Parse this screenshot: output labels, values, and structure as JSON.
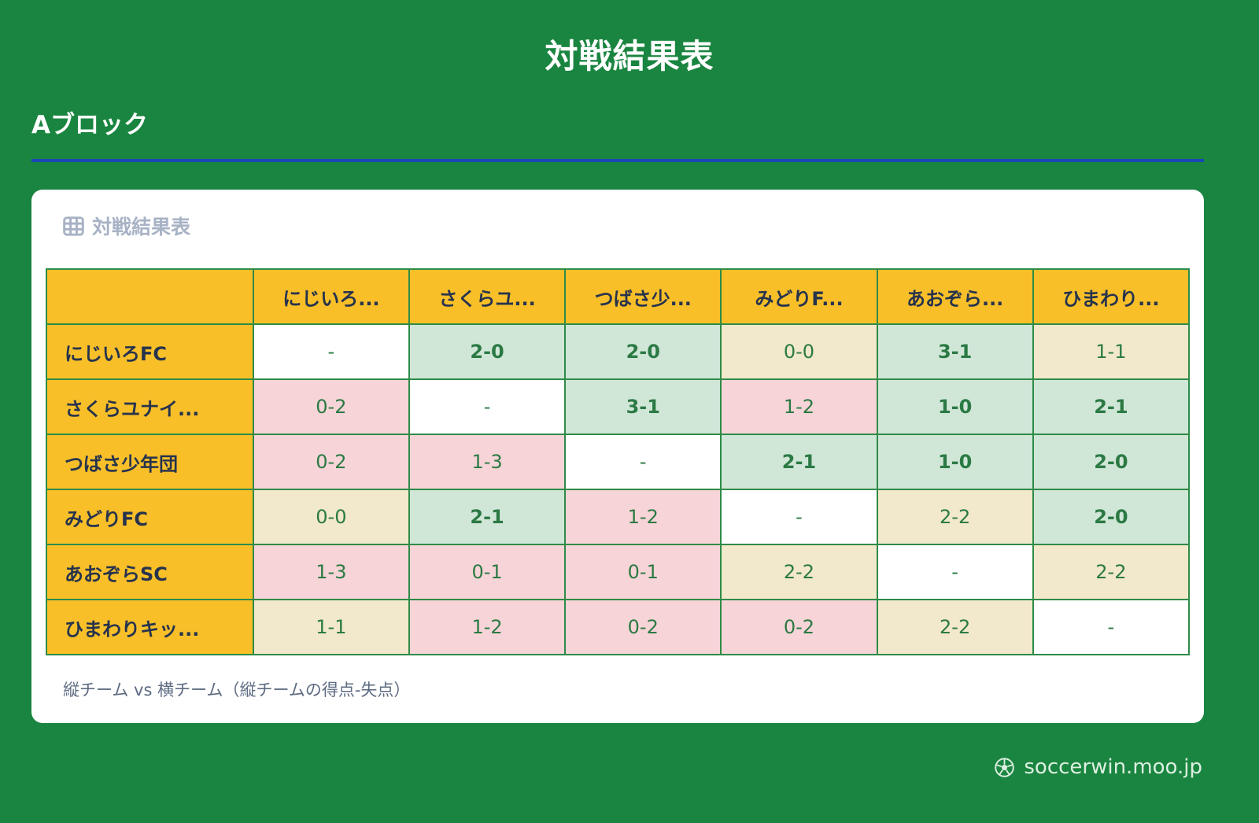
{
  "page": {
    "title": "対戦結果表",
    "block_label": "Aブロック",
    "site_name": "soccerwin.moo.jp"
  },
  "card": {
    "header_title": "対戦結果表",
    "note": "縦チーム vs 横チーム（縦チームの得点-失点）"
  },
  "table": {
    "col_headers": [
      "にじいろ...",
      "さくらユ...",
      "つばさ少...",
      "みどりF...",
      "あおぞら...",
      "ひまわり..."
    ],
    "rows": [
      {
        "team": "にじいろFC",
        "cells": [
          {
            "text": "-",
            "type": "self"
          },
          {
            "text": "2-0",
            "type": "win"
          },
          {
            "text": "2-0",
            "type": "win"
          },
          {
            "text": "0-0",
            "type": "draw"
          },
          {
            "text": "3-1",
            "type": "win"
          },
          {
            "text": "1-1",
            "type": "draw"
          }
        ]
      },
      {
        "team": "さくらユナイ...",
        "cells": [
          {
            "text": "0-2",
            "type": "loss"
          },
          {
            "text": "-",
            "type": "self"
          },
          {
            "text": "3-1",
            "type": "win"
          },
          {
            "text": "1-2",
            "type": "loss"
          },
          {
            "text": "1-0",
            "type": "win"
          },
          {
            "text": "2-1",
            "type": "win"
          }
        ]
      },
      {
        "team": "つばさ少年団",
        "cells": [
          {
            "text": "0-2",
            "type": "loss"
          },
          {
            "text": "1-3",
            "type": "loss"
          },
          {
            "text": "-",
            "type": "self"
          },
          {
            "text": "2-1",
            "type": "win"
          },
          {
            "text": "1-0",
            "type": "win"
          },
          {
            "text": "2-0",
            "type": "win"
          }
        ]
      },
      {
        "team": "みどりFC",
        "cells": [
          {
            "text": "0-0",
            "type": "draw"
          },
          {
            "text": "2-1",
            "type": "win"
          },
          {
            "text": "1-2",
            "type": "loss"
          },
          {
            "text": "-",
            "type": "self"
          },
          {
            "text": "2-2",
            "type": "draw"
          },
          {
            "text": "2-0",
            "type": "win"
          }
        ]
      },
      {
        "team": "あおぞらSC",
        "cells": [
          {
            "text": "1-3",
            "type": "loss"
          },
          {
            "text": "0-1",
            "type": "loss"
          },
          {
            "text": "0-1",
            "type": "loss"
          },
          {
            "text": "2-2",
            "type": "draw"
          },
          {
            "text": "-",
            "type": "self"
          },
          {
            "text": "2-2",
            "type": "draw"
          }
        ]
      },
      {
        "team": "ひまわりキッ...",
        "cells": [
          {
            "text": "1-1",
            "type": "draw"
          },
          {
            "text": "1-2",
            "type": "loss"
          },
          {
            "text": "0-2",
            "type": "loss"
          },
          {
            "text": "0-2",
            "type": "loss"
          },
          {
            "text": "2-2",
            "type": "draw"
          },
          {
            "text": "-",
            "type": "self"
          }
        ]
      }
    ]
  },
  "colors": {
    "page_background": "#1a8540",
    "divider_blue": "#1a47b8",
    "header_yellow": "#f8bf29",
    "header_text_navy": "#26334d",
    "border_green": "#2e8b47",
    "win_bg": "#d0e6d7",
    "loss_bg": "#f7d4d7",
    "draw_bg": "#f2e8cb",
    "score_text_green": "#2b7a44",
    "card_header_gray": "#a8b2c5",
    "note_gray": "#5d6b82",
    "footer_text": "#dcefe0"
  },
  "icons": {
    "card_header_icon": "table-grid-icon",
    "footer_icon": "soccer-ball-icon"
  }
}
